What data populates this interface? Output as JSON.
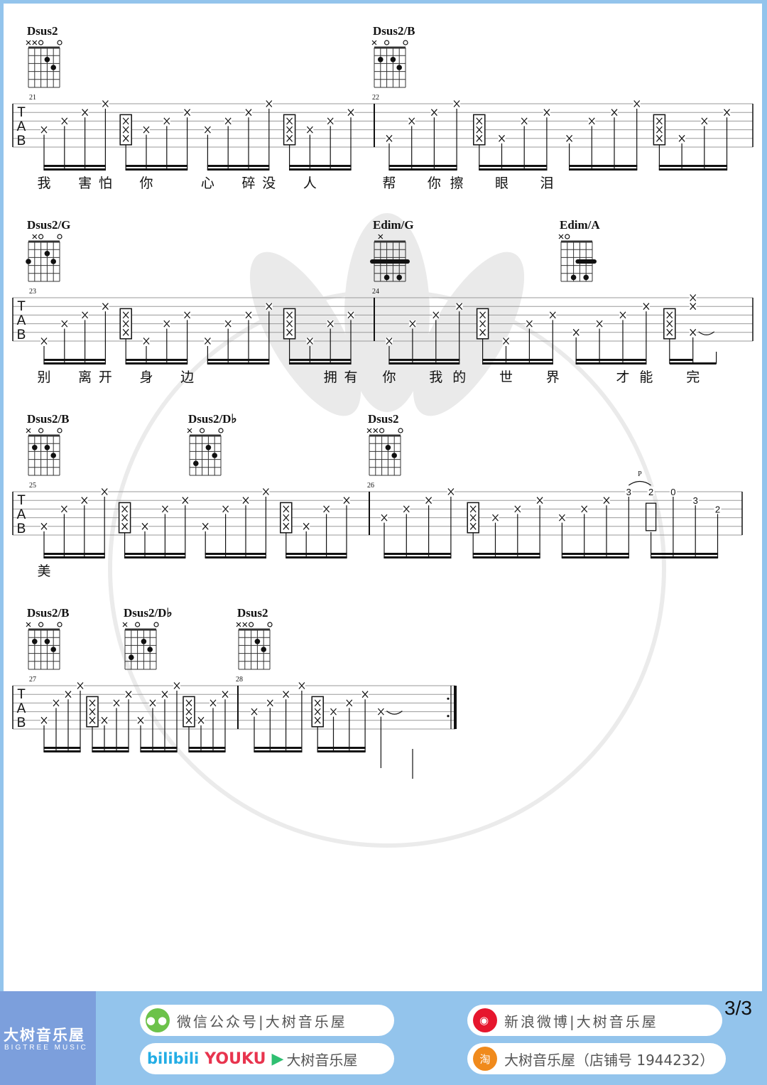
{
  "page_indicator": "3/3",
  "watermark": {
    "cn": "大树音乐屋",
    "en": "BIGTREE MUSIC"
  },
  "tab_clef": [
    "T",
    "A",
    "B"
  ],
  "footer": {
    "brand_cn": "大树音乐屋",
    "brand_en": "BIGTREE MUSIC",
    "wechat": "微信公众号|大树音乐屋",
    "weibo": "新浪微博|大树音乐屋",
    "bilibili": "bilibili",
    "youku": "YOUKU",
    "video_name": "大树音乐屋",
    "taobao": "大树音乐屋（店铺号 1944232）"
  },
  "systems": [
    {
      "chords": [
        {
          "name": "Dsus2",
          "markers": [
            "x",
            "x",
            "o",
            "",
            "",
            "o"
          ],
          "dots": [
            [
              4,
              2
            ],
            [
              5,
              3
            ]
          ]
        },
        {
          "name": "Dsus2/B",
          "markers": [
            "x",
            "",
            "o",
            "",
            "",
            "o"
          ],
          "dots": [
            [
              2,
              2
            ],
            [
              4,
              2
            ],
            [
              5,
              3
            ]
          ]
        }
      ],
      "measures": [
        {
          "number": "21",
          "notes": [
            "x4",
            "x3",
            "x2",
            "x1",
            "B",
            "x4",
            "x3",
            "x2",
            "x4",
            "x3",
            "x2",
            "x1",
            "B",
            "x4",
            "x3",
            "x2"
          ],
          "lyrics": [
            "我",
            "",
            "害",
            "怕",
            "",
            "你",
            "",
            "",
            "心",
            "",
            "碎",
            "没",
            "",
            "人",
            "",
            ""
          ]
        },
        {
          "number": "22",
          "notes": [
            "x5",
            "x3",
            "x2",
            "x1",
            "B",
            "x5",
            "x3",
            "x2",
            "x5",
            "x3",
            "x2",
            "x1",
            "B",
            "x5",
            "x3",
            "x2"
          ],
          "lyrics": [
            "帮",
            "",
            "你",
            "擦",
            "",
            "眼",
            "",
            "泪",
            "",
            "",
            "",
            "",
            "",
            "",
            "",
            ""
          ]
        }
      ]
    },
    {
      "chords": [
        {
          "name": "Dsus2/G",
          "markers": [
            "",
            "x",
            "o",
            "",
            "",
            "o"
          ],
          "dots": [
            [
              1,
              3
            ],
            [
              4,
              2
            ],
            [
              5,
              3
            ]
          ]
        },
        {
          "name": "Edim/G",
          "markers": [
            "",
            "x",
            "",
            "",
            "",
            ""
          ],
          "barre": {
            "fret": 3,
            "from": 1,
            "to": 6
          },
          "dots": [
            [
              3,
              5
            ],
            [
              5,
              5
            ]
          ]
        },
        {
          "name": "Edim/A",
          "markers": [
            "x",
            "o",
            "",
            "",
            "",
            ""
          ],
          "barre": {
            "fret": 3,
            "from": 4,
            "to": 6
          },
          "dots": [
            [
              3,
              5
            ],
            [
              5,
              5
            ]
          ]
        }
      ],
      "measures": [
        {
          "number": "23",
          "notes": [
            "x6",
            "x4",
            "x3",
            "x2",
            "B",
            "x6",
            "x4",
            "x3",
            "x6",
            "x4",
            "x3",
            "x2",
            "B",
            "x6",
            "x4",
            "x3"
          ],
          "lyrics": [
            "别",
            "",
            "离",
            "开",
            "",
            "身",
            "",
            "边",
            "",
            "",
            "",
            "",
            "",
            "",
            "拥",
            "有"
          ]
        },
        {
          "number": "24",
          "notes": [
            "x6",
            "x4",
            "x3",
            "x2",
            "B",
            "x6",
            "x4",
            "x3",
            "x5",
            "x4",
            "x3",
            "x2",
            "B",
            "x1.2.5~",
            "|",
            null
          ],
          "lyrics": [
            "你",
            "",
            "我",
            "的",
            "",
            "世",
            "",
            "界",
            "",
            "",
            "才",
            "能",
            "",
            "完",
            "",
            ""
          ]
        }
      ]
    },
    {
      "chords": [
        {
          "name": "Dsus2/B",
          "markers": [
            "x",
            "",
            "o",
            "",
            "",
            "o"
          ],
          "dots": [
            [
              2,
              2
            ],
            [
              4,
              2
            ],
            [
              5,
              3
            ]
          ]
        },
        {
          "name": "Dsus2/D♭",
          "markers": [
            "x",
            "",
            "o",
            "",
            "",
            "o"
          ],
          "dots": [
            [
              2,
              4
            ],
            [
              4,
              2
            ],
            [
              5,
              3
            ]
          ]
        },
        {
          "name": "Dsus2",
          "markers": [
            "x",
            "x",
            "o",
            "",
            "",
            "o"
          ],
          "dots": [
            [
              4,
              2
            ],
            [
              5,
              3
            ]
          ]
        }
      ],
      "measures": [
        {
          "number": "25",
          "notes": [
            "x5",
            "x3",
            "x2",
            "x1",
            "B",
            "x5",
            "x3",
            "x2",
            "x5",
            "x3",
            "x2",
            "x1",
            "B",
            "x5",
            "x3",
            "x2"
          ],
          "lyrics": [
            "美",
            "",
            "",
            "",
            "",
            "",
            "",
            "",
            "",
            "",
            "",
            "",
            "",
            "",
            "",
            ""
          ]
        },
        {
          "number": "26",
          "notes": [
            "x4",
            "x3",
            "x2",
            "x1",
            "B",
            "x4",
            "x3",
            "x2",
            "x4",
            "x3",
            "x2",
            "n1:3P",
            "n1:2E",
            "n1:0",
            "n2:3",
            "n3:2"
          ],
          "lyrics": [
            "",
            "",
            "",
            "",
            "",
            "",
            "",
            "",
            "",
            "",
            "",
            "",
            "",
            "",
            "",
            ""
          ]
        }
      ]
    },
    {
      "chords": [
        {
          "name": "Dsus2/B",
          "markers": [
            "x",
            "",
            "o",
            "",
            "",
            "o"
          ],
          "dots": [
            [
              2,
              2
            ],
            [
              4,
              2
            ],
            [
              5,
              3
            ]
          ]
        },
        {
          "name": "Dsus2/D♭",
          "markers": [
            "x",
            "",
            "o",
            "",
            "",
            "o"
          ],
          "dots": [
            [
              2,
              4
            ],
            [
              4,
              2
            ],
            [
              5,
              3
            ]
          ]
        },
        {
          "name": "Dsus2",
          "markers": [
            "x",
            "x",
            "o",
            "",
            "",
            "o"
          ],
          "dots": [
            [
              4,
              2
            ],
            [
              5,
              3
            ]
          ]
        }
      ],
      "measures": [
        {
          "number": "27",
          "notes": [
            "x5",
            "x3",
            "x2",
            "x1",
            "B",
            "x5",
            "x3",
            "x2",
            "x5",
            "x3",
            "x2",
            "x1",
            "B",
            "x5",
            "x3",
            "x2"
          ],
          "lyrics": [
            "",
            "",
            "",
            "",
            "",
            "",
            "",
            "",
            "",
            "",
            "",
            "",
            "",
            "",
            "",
            ""
          ]
        },
        {
          "number": "28",
          "notes": [
            "x4",
            "x3",
            "x2",
            "x1",
            "B",
            "x4",
            "x3",
            "x2",
            "x4~",
            null,
            "|",
            null,
            null,
            null,
            null,
            null
          ],
          "lyrics": [
            "",
            "",
            "",
            "",
            "",
            "",
            "",
            "",
            "",
            "",
            "",
            "",
            "",
            "",
            "",
            ""
          ],
          "final": true
        }
      ]
    }
  ]
}
